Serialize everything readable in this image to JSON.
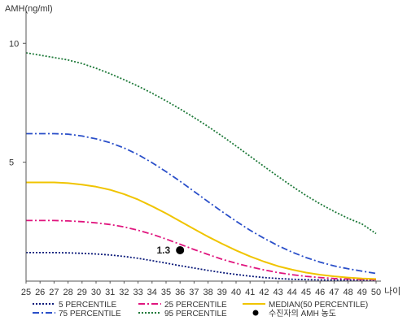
{
  "chart_data": {
    "type": "line",
    "ylabel": "AMH(ng/ml)",
    "xlabel": "나이",
    "xlim": [
      25,
      50
    ],
    "ylim": [
      0,
      11
    ],
    "x_ticks": [
      25,
      26,
      27,
      28,
      29,
      30,
      31,
      32,
      33,
      34,
      35,
      36,
      37,
      38,
      39,
      40,
      41,
      42,
      43,
      44,
      45,
      46,
      47,
      48,
      49,
      50
    ],
    "y_ticks": [
      5,
      10
    ],
    "x": [
      25,
      26,
      27,
      28,
      29,
      30,
      31,
      32,
      33,
      34,
      35,
      36,
      37,
      38,
      39,
      40,
      41,
      42,
      43,
      44,
      45,
      46,
      47,
      48,
      49,
      50
    ],
    "series": [
      {
        "name": "5 PERCENTILE",
        "color": "#0b1a7a",
        "dash": "2,2",
        "values": [
          1.2,
          1.2,
          1.2,
          1.19,
          1.17,
          1.14,
          1.1,
          1.04,
          0.96,
          0.86,
          0.76,
          0.65,
          0.55,
          0.45,
          0.36,
          0.28,
          0.21,
          0.15,
          0.11,
          0.08,
          0.06,
          0.05,
          0.04,
          0.04,
          0.04,
          0.03
        ]
      },
      {
        "name": "25 PERCENTILE",
        "color": "#e0157e",
        "dash": "8,3,2,3",
        "values": [
          2.55,
          2.55,
          2.55,
          2.53,
          2.5,
          2.45,
          2.38,
          2.28,
          2.14,
          1.97,
          1.77,
          1.55,
          1.33,
          1.12,
          0.92,
          0.75,
          0.6,
          0.47,
          0.36,
          0.27,
          0.2,
          0.15,
          0.11,
          0.09,
          0.07,
          0.06
        ]
      },
      {
        "name": "MEDIAN(50 PERCENTILE)",
        "color": "#f0c400",
        "dash": "",
        "values": [
          4.15,
          4.15,
          4.15,
          4.12,
          4.06,
          3.97,
          3.84,
          3.66,
          3.43,
          3.15,
          2.85,
          2.52,
          2.19,
          1.87,
          1.57,
          1.29,
          1.04,
          0.82,
          0.63,
          0.48,
          0.36,
          0.27,
          0.2,
          0.15,
          0.11,
          0.09
        ]
      },
      {
        "name": "75 PERCENTILE",
        "color": "#2a4fc9",
        "dash": "8,3,2,3",
        "values": [
          6.2,
          6.2,
          6.2,
          6.18,
          6.1,
          5.98,
          5.82,
          5.6,
          5.32,
          4.98,
          4.6,
          4.2,
          3.77,
          3.34,
          2.92,
          2.52,
          2.14,
          1.8,
          1.49,
          1.22,
          0.99,
          0.8,
          0.64,
          0.52,
          0.42,
          0.32
        ]
      },
      {
        "name": "95 PERCENTILE",
        "color": "#1f7a3a",
        "dash": "2,2",
        "values": [
          9.6,
          9.5,
          9.4,
          9.3,
          9.15,
          8.95,
          8.72,
          8.47,
          8.2,
          7.9,
          7.58,
          7.24,
          6.88,
          6.5,
          6.1,
          5.68,
          5.25,
          4.82,
          4.4,
          3.99,
          3.6,
          3.25,
          2.93,
          2.64,
          2.4,
          2.0
        ]
      }
    ],
    "highlight": {
      "legend": "수진자의 AMH 농도",
      "x": 36,
      "y": 1.3,
      "label": "1.3",
      "color": "#000000"
    },
    "legend": [
      {
        "name": "5 PERCENTILE",
        "series": 0
      },
      {
        "name": "25 PERCENTILE",
        "series": 1
      },
      {
        "name": "MEDIAN(50 PERCENTILE)",
        "series": 2
      },
      {
        "name": "75 PERCENTILE",
        "series": 3
      },
      {
        "name": "95 PERCENTILE",
        "series": 4
      },
      {
        "name": "수진자의 AMH 농도",
        "series": "highlight"
      }
    ],
    "legend_position": "bottom",
    "grid": false
  }
}
